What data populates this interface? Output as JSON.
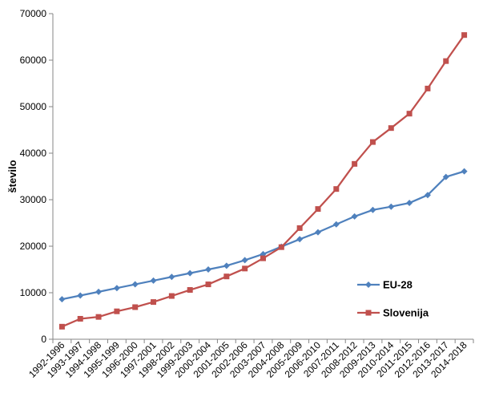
{
  "chart_data": {
    "type": "line",
    "title": "",
    "xlabel": "",
    "ylabel": "število",
    "ylim": [
      0,
      70000
    ],
    "yticks": [
      0,
      10000,
      20000,
      30000,
      40000,
      50000,
      60000,
      70000
    ],
    "categories": [
      "1992-1996",
      "1993-1997",
      "1994-1998",
      "1995-1999",
      "1996-2000",
      "1997-2001",
      "1998-2002",
      "1999-2003",
      "2000-2004",
      "2001-2005",
      "2002-2006",
      "2003-2007",
      "2004-2008",
      "2005-2009",
      "2006-2010",
      "2007-2011",
      "2008-2012",
      "2009-2013",
      "2010-2014",
      "2011-2015",
      "2012-2016",
      "2013-2017",
      "2014-2018"
    ],
    "legend_position": "right",
    "grid": false,
    "series": [
      {
        "name": "EU-28",
        "color": "#4F81BD",
        "marker": "diamond",
        "values": [
          8600,
          9400,
          10200,
          11000,
          11800,
          12600,
          13400,
          14200,
          15000,
          15800,
          17000,
          18300,
          19900,
          21500,
          23000,
          24700,
          26400,
          27800,
          28500,
          29300,
          31000,
          34900,
          36100
        ]
      },
      {
        "name": "Slovenija",
        "color": "#C0504D",
        "marker": "square",
        "values": [
          2700,
          4400,
          4800,
          6000,
          6900,
          8000,
          9300,
          10600,
          11800,
          13500,
          15200,
          17400,
          19800,
          23900,
          28000,
          32300,
          37700,
          42400,
          45400,
          48500,
          53900,
          59800,
          65400
        ]
      }
    ]
  }
}
